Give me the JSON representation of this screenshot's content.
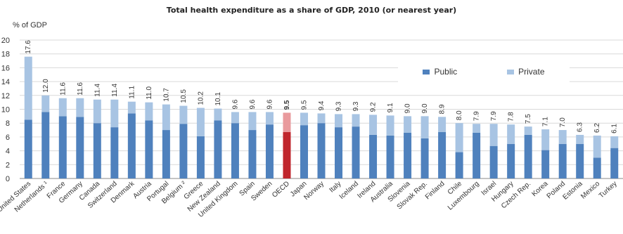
{
  "chart_data": {
    "type": "bar",
    "stacked": true,
    "title": "Total health expenditure as a share of GDP, 2010 (or nearest year)",
    "ylabel": "% of GDP",
    "ylim": [
      0,
      20
    ],
    "yticks": [
      "0",
      "2",
      "4",
      "6",
      "8",
      "10",
      "12",
      "14",
      "16",
      "18",
      "20"
    ],
    "grid": true,
    "legend_position": "top-right",
    "categories": [
      "United States",
      "Netherlands ¹",
      "France",
      "Germany",
      "Canada",
      "Switzerland",
      "Denmark",
      "Austria",
      "Portugal",
      "Belgium ²",
      "Greece",
      "New Zealand",
      "United Kingdom",
      "Spain",
      "Sweden",
      "OECD",
      "Japan",
      "Norway",
      "Italy",
      "Iceland",
      "Ireland",
      "Australia",
      "Slovenia",
      "Slovak Rep.",
      "Finland",
      "Chile",
      "Luxembourg",
      "Israel",
      "Hungary",
      "Czech Rep.",
      "Korea",
      "Poland",
      "Estonia",
      "Mexico",
      "Turkey"
    ],
    "totals": [
      17.6,
      12.0,
      11.6,
      11.6,
      11.4,
      11.4,
      11.1,
      11.0,
      10.7,
      10.5,
      10.2,
      10.1,
      9.6,
      9.6,
      9.6,
      9.5,
      9.5,
      9.4,
      9.3,
      9.3,
      9.2,
      9.1,
      9.0,
      9.0,
      8.9,
      8.0,
      7.9,
      7.9,
      7.8,
      7.5,
      7.1,
      7.0,
      6.3,
      6.2,
      6.1
    ],
    "total_labels": [
      "17.6",
      "12.0",
      "11.6",
      "11.6",
      "11.4",
      "11.4",
      "11.1",
      "11.0",
      "10.7",
      "10.5",
      "10.2",
      "10.1",
      "9.6",
      "9.6",
      "9.6",
      "9.5",
      "9.5",
      "9.4",
      "9.3",
      "9.3",
      "9.2",
      "9.1",
      "9.0",
      "9.0",
      "8.9",
      "8.0",
      "7.9",
      "7.9",
      "7.8",
      "7.5",
      "7.1",
      "7.0",
      "6.3",
      "6.2",
      "6.1"
    ],
    "series": [
      {
        "name": "Public",
        "color": "#4f81bd",
        "values": [
          8.5,
          9.6,
          9.0,
          8.9,
          8.0,
          7.4,
          9.4,
          8.4,
          7.0,
          7.9,
          6.1,
          8.4,
          8.0,
          7.0,
          7.8,
          6.7,
          7.7,
          8.0,
          7.4,
          7.5,
          6.3,
          6.2,
          6.6,
          5.8,
          6.7,
          3.8,
          6.6,
          4.7,
          5.0,
          6.3,
          4.1,
          5.0,
          5.0,
          3.0,
          4.4
        ]
      },
      {
        "name": "Private",
        "color": "#a8c4e3",
        "values": [
          9.1,
          2.4,
          2.6,
          2.7,
          3.4,
          4.0,
          1.7,
          2.6,
          3.7,
          2.6,
          4.1,
          1.7,
          1.6,
          2.6,
          1.8,
          2.8,
          1.8,
          1.4,
          1.9,
          1.8,
          2.9,
          2.9,
          2.4,
          3.2,
          2.2,
          4.2,
          1.3,
          3.2,
          2.8,
          1.2,
          3.0,
          2.0,
          1.3,
          3.2,
          1.7
        ]
      }
    ],
    "highlight_category": "OECD",
    "highlight_colors": {
      "public": "#c0262d",
      "private": "#e99a9d"
    }
  }
}
